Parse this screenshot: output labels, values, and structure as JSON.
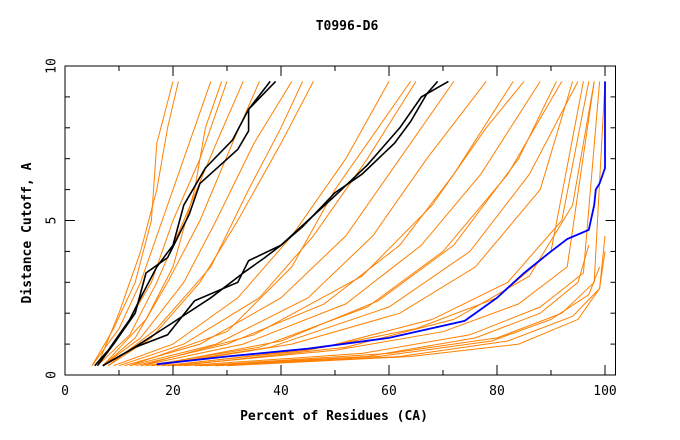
{
  "chart_data": {
    "type": "line",
    "title": "T0996-D6",
    "xlabel": "Percent of Residues (CA)",
    "ylabel": "Distance Cutoff, A",
    "xlim": [
      0,
      101
    ],
    "ylim": [
      0,
      10
    ],
    "xticks": [
      "0",
      "20",
      "40",
      "60",
      "80",
      "100"
    ],
    "yticks": [
      "0",
      "5",
      "10"
    ],
    "grid": false,
    "colors": {
      "others": "#ff8000",
      "highlight": "#000000",
      "best": "#0000ff"
    },
    "orange_series": [
      [
        [
          5,
          0.3
        ],
        [
          9,
          1.5
        ],
        [
          13,
          3
        ],
        [
          16,
          5
        ],
        [
          17,
          7.5
        ],
        [
          20,
          9.5
        ]
      ],
      [
        [
          5,
          0.3
        ],
        [
          10,
          1.5
        ],
        [
          14,
          3
        ],
        [
          18,
          5
        ],
        [
          22,
          7
        ],
        [
          27,
          9.5
        ]
      ],
      [
        [
          6,
          0.3
        ],
        [
          11,
          1.5
        ],
        [
          16,
          3
        ],
        [
          20,
          5
        ],
        [
          25,
          7
        ],
        [
          30,
          9.5
        ]
      ],
      [
        [
          6,
          0.3
        ],
        [
          12,
          1.3
        ],
        [
          17,
          3
        ],
        [
          22,
          5
        ],
        [
          28,
          7.5
        ],
        [
          33,
          9.5
        ]
      ],
      [
        [
          7,
          0.3
        ],
        [
          13,
          1.2
        ],
        [
          19,
          3
        ],
        [
          25,
          5
        ],
        [
          31,
          7.5
        ],
        [
          36,
          9.5
        ]
      ],
      [
        [
          7,
          0.3
        ],
        [
          14,
          1.2
        ],
        [
          22,
          3
        ],
        [
          28,
          5
        ],
        [
          35,
          7.5
        ],
        [
          42,
          9.5
        ]
      ],
      [
        [
          8,
          0.3
        ],
        [
          16,
          1.2
        ],
        [
          25,
          3
        ],
        [
          32,
          5
        ],
        [
          40,
          7.5
        ],
        [
          46,
          9.5
        ]
      ],
      [
        [
          6,
          0.3
        ],
        [
          10,
          2
        ],
        [
          14,
          4
        ],
        [
          17,
          6
        ],
        [
          19,
          8
        ],
        [
          21,
          9.5
        ]
      ],
      [
        [
          7,
          0.3
        ],
        [
          15,
          1.8
        ],
        [
          20,
          3.5
        ],
        [
          24,
          6
        ],
        [
          26,
          8
        ],
        [
          29,
          9.5
        ]
      ],
      [
        [
          8,
          0.3
        ],
        [
          17,
          1.5
        ],
        [
          27,
          3.5
        ],
        [
          34,
          6
        ],
        [
          40,
          8
        ],
        [
          44,
          9.5
        ]
      ],
      [
        [
          9,
          0.3
        ],
        [
          20,
          1
        ],
        [
          32,
          2.5
        ],
        [
          42,
          4.5
        ],
        [
          52,
          7
        ],
        [
          60,
          9.5
        ]
      ],
      [
        [
          10,
          0.3
        ],
        [
          22,
          1
        ],
        [
          36,
          2.5
        ],
        [
          46,
          4.5
        ],
        [
          56,
          7
        ],
        [
          65,
          9.5
        ]
      ],
      [
        [
          11,
          0.3
        ],
        [
          25,
          1
        ],
        [
          40,
          2.5
        ],
        [
          52,
          4.5
        ],
        [
          62,
          7
        ],
        [
          72,
          9.5
        ]
      ],
      [
        [
          12,
          0.3
        ],
        [
          28,
          1
        ],
        [
          45,
          2.5
        ],
        [
          57,
          4.5
        ],
        [
          67,
          7
        ],
        [
          78,
          9.5
        ]
      ],
      [
        [
          13,
          0.3
        ],
        [
          30,
          1
        ],
        [
          48,
          2.3
        ],
        [
          62,
          4.2
        ],
        [
          72,
          6.5
        ],
        [
          83,
          9.5
        ]
      ],
      [
        [
          14,
          0.3
        ],
        [
          33,
          1
        ],
        [
          52,
          2.3
        ],
        [
          66,
          4.2
        ],
        [
          77,
          6.5
        ],
        [
          88,
          9.5
        ]
      ],
      [
        [
          15,
          0.3
        ],
        [
          36,
          0.9
        ],
        [
          56,
          2.2
        ],
        [
          70,
          4
        ],
        [
          82,
          6.5
        ],
        [
          92,
          9.5
        ]
      ],
      [
        [
          16,
          0.3
        ],
        [
          38,
          0.9
        ],
        [
          60,
          2.2
        ],
        [
          75,
          4
        ],
        [
          86,
          6.5
        ],
        [
          95,
          9.5
        ]
      ],
      [
        [
          12,
          0.3
        ],
        [
          30,
          1.4
        ],
        [
          42,
          3.5
        ],
        [
          50,
          6
        ],
        [
          58,
          8
        ],
        [
          64,
          9.5
        ]
      ],
      [
        [
          14,
          0.3
        ],
        [
          35,
          1.3
        ],
        [
          55,
          3.2
        ],
        [
          68,
          5.5
        ],
        [
          78,
          8
        ],
        [
          85,
          9.5
        ]
      ],
      [
        [
          18,
          0.3
        ],
        [
          45,
          0.8
        ],
        [
          65,
          1.5
        ],
        [
          80,
          2.5
        ],
        [
          90,
          4
        ],
        [
          96,
          9.5
        ]
      ],
      [
        [
          20,
          0.3
        ],
        [
          50,
          0.8
        ],
        [
          70,
          1.4
        ],
        [
          84,
          2.3
        ],
        [
          93,
          3.5
        ],
        [
          98,
          9.5
        ]
      ],
      [
        [
          22,
          0.3
        ],
        [
          55,
          0.7
        ],
        [
          75,
          1.3
        ],
        [
          88,
          2.2
        ],
        [
          96,
          3.3
        ],
        [
          99,
          9.5
        ]
      ],
      [
        [
          25,
          0.3
        ],
        [
          60,
          0.7
        ],
        [
          80,
          1.2
        ],
        [
          92,
          2
        ],
        [
          98,
          3
        ],
        [
          100,
          9.5
        ]
      ],
      [
        [
          28,
          0.3
        ],
        [
          62,
          0.6
        ],
        [
          82,
          1.1
        ],
        [
          94,
          1.9
        ],
        [
          99,
          2.8
        ],
        [
          100,
          4.5
        ]
      ],
      [
        [
          30,
          0.3
        ],
        [
          64,
          0.6
        ],
        [
          84,
          1.0
        ],
        [
          95,
          1.8
        ],
        [
          99,
          2.8
        ],
        [
          100,
          4
        ]
      ],
      [
        [
          19,
          0.3
        ],
        [
          48,
          0.9
        ],
        [
          68,
          1.8
        ],
        [
          82,
          3
        ],
        [
          92,
          5
        ],
        [
          97,
          9.5
        ]
      ],
      [
        [
          21,
          0.3
        ],
        [
          52,
          0.9
        ],
        [
          72,
          1.8
        ],
        [
          86,
          3.2
        ],
        [
          94,
          5.5
        ],
        [
          98,
          9.5
        ]
      ],
      [
        [
          17,
          0.3
        ],
        [
          42,
          1
        ],
        [
          62,
          2
        ],
        [
          76,
          3.5
        ],
        [
          88,
          6
        ],
        [
          94,
          9.5
        ]
      ],
      [
        [
          24,
          0.3
        ],
        [
          56,
          0.6
        ],
        [
          76,
          1.2
        ],
        [
          88,
          2
        ],
        [
          95,
          3
        ],
        [
          97,
          4.2
        ]
      ],
      [
        [
          16,
          0.3
        ],
        [
          40,
          1.1
        ],
        [
          58,
          2.4
        ],
        [
          72,
          4.2
        ],
        [
          84,
          7
        ],
        [
          91,
          9.5
        ]
      ],
      [
        [
          26,
          0.3
        ],
        [
          58,
          0.6
        ],
        [
          79,
          1.1
        ],
        [
          90,
          1.8
        ],
        [
          97,
          2.6
        ],
        [
          99,
          3.5
        ]
      ]
    ],
    "black_series": [
      [
        [
          5.5,
          0.3
        ],
        [
          8,
          0.8
        ],
        [
          12,
          1.8
        ],
        [
          14,
          2.5
        ],
        [
          17,
          3.5
        ],
        [
          20,
          4.2
        ],
        [
          22,
          5.5
        ],
        [
          26,
          6.7
        ],
        [
          31,
          7.6
        ],
        [
          34,
          8.6
        ],
        [
          39,
          9.5
        ]
      ],
      [
        [
          6,
          0.3
        ],
        [
          9,
          1
        ],
        [
          13,
          2
        ],
        [
          15,
          3.3
        ],
        [
          19,
          3.8
        ],
        [
          21,
          4.5
        ],
        [
          23,
          5.2
        ],
        [
          25,
          6.2
        ],
        [
          32,
          7.3
        ],
        [
          34,
          7.9
        ],
        [
          34,
          8.6
        ],
        [
          38,
          9.5
        ]
      ],
      [
        [
          7,
          0.3
        ],
        [
          12,
          0.8
        ],
        [
          20,
          1.7
        ],
        [
          27,
          2.5
        ],
        [
          33,
          3.3
        ],
        [
          37,
          3.8
        ],
        [
          40,
          4.2
        ],
        [
          45,
          5
        ],
        [
          50,
          5.8
        ],
        [
          56,
          6.8
        ],
        [
          62,
          8
        ],
        [
          66,
          9
        ],
        [
          71,
          9.5
        ]
      ],
      [
        [
          7,
          0.3
        ],
        [
          13,
          0.9
        ],
        [
          19,
          1.3
        ],
        [
          24,
          2.4
        ],
        [
          32,
          3.0
        ],
        [
          34,
          3.7
        ],
        [
          40,
          4.2
        ],
        [
          44,
          4.8
        ],
        [
          50,
          5.9
        ],
        [
          55,
          6.5
        ],
        [
          61,
          7.5
        ],
        [
          64,
          8.2
        ],
        [
          67,
          9.1
        ],
        [
          69,
          9.5
        ]
      ]
    ],
    "blue_series": [
      [
        17,
        0.35
      ],
      [
        30,
        0.6
      ],
      [
        45,
        0.85
      ],
      [
        60,
        1.2
      ],
      [
        74,
        1.75
      ],
      [
        80,
        2.5
      ],
      [
        85,
        3.3
      ],
      [
        90,
        4.0
      ],
      [
        93,
        4.4
      ],
      [
        97,
        4.7
      ],
      [
        98,
        5.5
      ],
      [
        98.3,
        6.0
      ],
      [
        99,
        6.2
      ],
      [
        100,
        6.7
      ],
      [
        100,
        9.5
      ]
    ]
  }
}
